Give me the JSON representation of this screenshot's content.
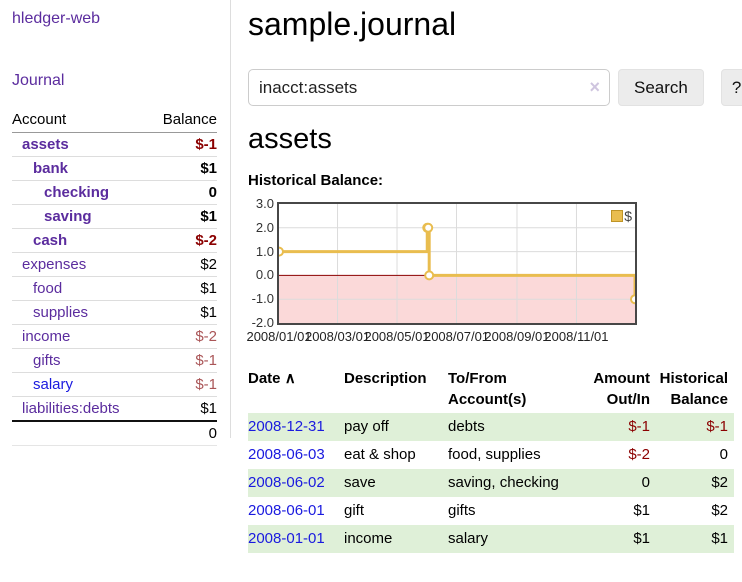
{
  "app": {
    "title": "hledger-web",
    "nav_journal": "Journal"
  },
  "colors": {
    "accent_purple": "#5b2c9e",
    "link_blue": "#1a1adf",
    "negative": "#8b0000",
    "negative_soft": "#aa5557",
    "row_green": "#dff0d8",
    "chart_gold": "#e9bd4f",
    "chart_negative_bg": "#fbd9d9",
    "zero_line": "#8b0000"
  },
  "sidebar": {
    "headers": {
      "account": "Account",
      "balance": "Balance"
    },
    "accounts": [
      {
        "name": "assets",
        "level": 1,
        "balance": "$-1",
        "bold": true,
        "neg": true,
        "soft": false,
        "blue": false
      },
      {
        "name": "bank",
        "level": 2,
        "balance": "$1",
        "bold": true,
        "neg": false,
        "soft": false,
        "blue": false
      },
      {
        "name": "checking",
        "level": 3,
        "balance": "0",
        "bold": true,
        "neg": false,
        "soft": false,
        "blue": false
      },
      {
        "name": "saving",
        "level": 3,
        "balance": "$1",
        "bold": true,
        "neg": false,
        "soft": false,
        "blue": false
      },
      {
        "name": "cash",
        "level": 2,
        "balance": "$-2",
        "bold": true,
        "neg": true,
        "soft": false,
        "blue": false
      },
      {
        "name": "expenses",
        "level": 1,
        "balance": "$2",
        "bold": false,
        "neg": false,
        "soft": false,
        "blue": false
      },
      {
        "name": "food",
        "level": 2,
        "balance": "$1",
        "bold": false,
        "neg": false,
        "soft": false,
        "blue": false
      },
      {
        "name": "supplies",
        "level": 2,
        "balance": "$1",
        "bold": false,
        "neg": false,
        "soft": false,
        "blue": false
      },
      {
        "name": "income",
        "level": 1,
        "balance": "$-2",
        "bold": false,
        "neg": true,
        "soft": true,
        "blue": false
      },
      {
        "name": "gifts",
        "level": 2,
        "balance": "$-1",
        "bold": false,
        "neg": true,
        "soft": true,
        "blue": false
      },
      {
        "name": "salary",
        "level": 2,
        "balance": "$-1",
        "bold": false,
        "neg": true,
        "soft": true,
        "blue": true
      },
      {
        "name": "liabilities:debts",
        "level": 1,
        "balance": "$1",
        "bold": false,
        "neg": false,
        "soft": false,
        "blue": false
      }
    ],
    "total": "0"
  },
  "header": {
    "title": "sample.journal"
  },
  "search": {
    "value": "inacct:assets",
    "clear_icon": "×",
    "button": "Search",
    "help_button": "?"
  },
  "account_page": {
    "heading": "assets",
    "chart_label": "Historical Balance:"
  },
  "chart_data": {
    "type": "line",
    "style": "step",
    "title": "Historical Balance",
    "xlabel": "",
    "ylabel": "",
    "xlim": [
      "2008/01/01",
      "2008/12/31"
    ],
    "ylim": [
      -2,
      3
    ],
    "x_ticks": [
      "2008/01/01",
      "2008/03/01",
      "2008/05/01",
      "2008/07/01",
      "2008/09/01",
      "2008/11/01"
    ],
    "y_ticks": [
      "3.0",
      "2.0",
      "1.0",
      "0.0",
      "-1.0",
      "-2.0"
    ],
    "grid": true,
    "legend_position": "top-right",
    "negative_region_color": "#fbd9d9",
    "zero_line_color": "#8b0000",
    "series": [
      {
        "name": "$",
        "color": "#e9bd4f",
        "marker": "circle",
        "points": [
          {
            "x": "2008/01/01",
            "y": 1
          },
          {
            "x": "2008/06/01",
            "y": 2
          },
          {
            "x": "2008/06/02",
            "y": 2
          },
          {
            "x": "2008/06/03",
            "y": 0
          },
          {
            "x": "2008/12/31",
            "y": -1
          }
        ]
      }
    ]
  },
  "register": {
    "columns": {
      "date": "Date",
      "description": "Description",
      "accounts": "To/From Account(s)",
      "amount": "Amount Out/In",
      "balance": "Historical Balance"
    },
    "sort_asc_icon": "∧",
    "rows": [
      {
        "date": "2008-12-31",
        "description": "pay off",
        "accounts": "debts",
        "amount": "$-1",
        "amount_neg": true,
        "balance": "$-1",
        "balance_neg": true
      },
      {
        "date": "2008-06-03",
        "description": "eat & shop",
        "accounts": "food, supplies",
        "amount": "$-2",
        "amount_neg": true,
        "balance": "0",
        "balance_neg": false
      },
      {
        "date": "2008-06-02",
        "description": "save",
        "accounts": "saving, checking",
        "amount": "0",
        "amount_neg": false,
        "balance": "$2",
        "balance_neg": false
      },
      {
        "date": "2008-06-01",
        "description": "gift",
        "accounts": "gifts",
        "amount": "$1",
        "amount_neg": false,
        "balance": "$2",
        "balance_neg": false
      },
      {
        "date": "2008-01-01",
        "description": "income",
        "accounts": "salary",
        "amount": "$1",
        "amount_neg": false,
        "balance": "$1",
        "balance_neg": false
      }
    ]
  }
}
